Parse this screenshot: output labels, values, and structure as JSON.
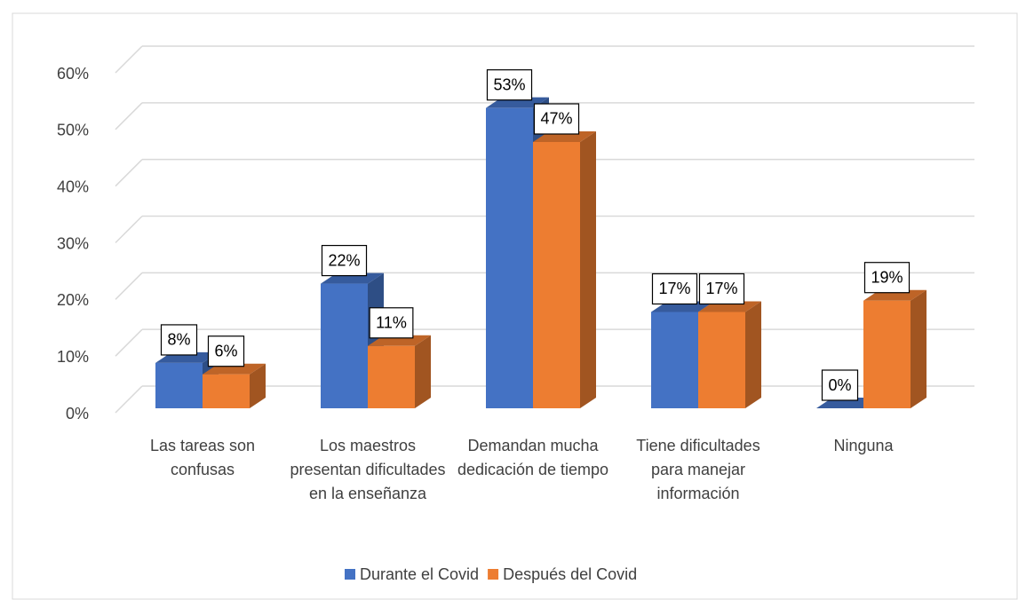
{
  "chart_data": {
    "type": "bar3d",
    "categories": [
      "Las tareas son confusas",
      "Los maestros presentan dificultades en la enseñanza",
      "Demandan mucha dedicación de tiempo",
      "Tiene dificultades para manejar información",
      "Ninguna"
    ],
    "series": [
      {
        "name": "Durante el Covid",
        "color": "#4472c4",
        "values": [
          8,
          22,
          53,
          17,
          0
        ],
        "value_labels": [
          "8%",
          "22%",
          "53%",
          "17%",
          "0%"
        ]
      },
      {
        "name": "Después del Covid",
        "color": "#ed7d31",
        "values": [
          6,
          11,
          47,
          17,
          19
        ],
        "value_labels": [
          "6%",
          "11%",
          "47%",
          "17%",
          "19%"
        ]
      }
    ],
    "ylim": [
      0,
      60
    ],
    "yticks": [
      {
        "value": 0,
        "label": "0%"
      },
      {
        "value": 10,
        "label": "10%"
      },
      {
        "value": 20,
        "label": "20%"
      },
      {
        "value": 30,
        "label": "30%"
      },
      {
        "value": 40,
        "label": "40%"
      },
      {
        "value": 50,
        "label": "50%"
      },
      {
        "value": 60,
        "label": "60%"
      }
    ],
    "grid": true,
    "legend": "bottom"
  }
}
